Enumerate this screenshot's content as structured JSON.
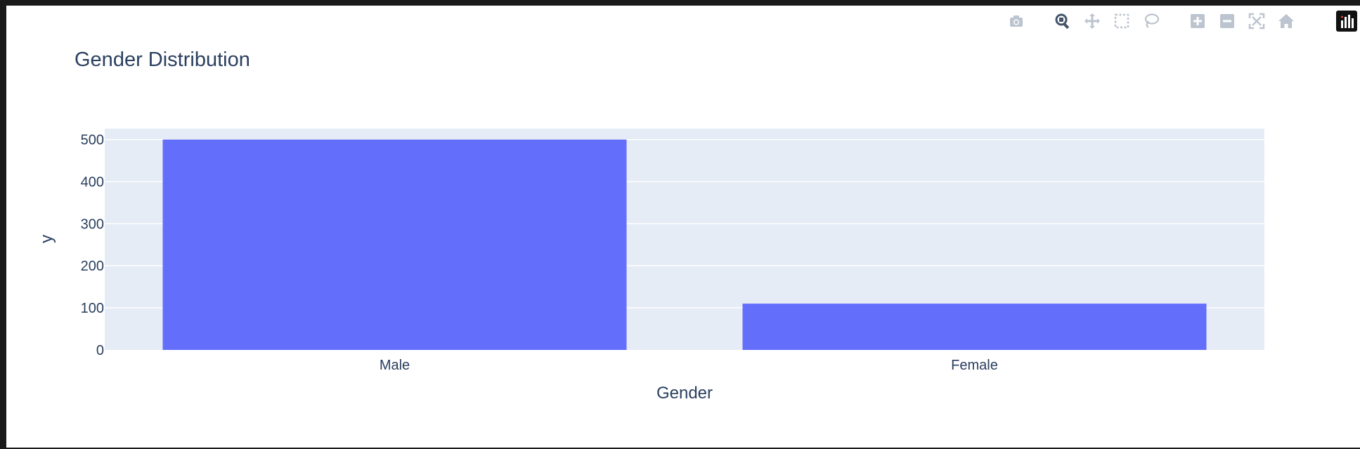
{
  "modebar": {
    "buttons": [
      {
        "name": "camera-icon",
        "group": 0
      },
      {
        "name": "zoom-icon",
        "group": 1,
        "active": true
      },
      {
        "name": "pan-icon",
        "group": 1
      },
      {
        "name": "box-select-icon",
        "group": 1
      },
      {
        "name": "lasso-select-icon",
        "group": 1
      },
      {
        "name": "zoom-in-icon",
        "group": 2
      },
      {
        "name": "zoom-out-icon",
        "group": 2
      },
      {
        "name": "autoscale-icon",
        "group": 2
      },
      {
        "name": "reset-axes-icon",
        "group": 2
      },
      {
        "name": "plotly-logo-icon",
        "group": 3
      }
    ],
    "icon_color": "#bcc4cf",
    "active_color": "#44546a"
  },
  "chart_data": {
    "type": "bar",
    "title": "Gender Distribution",
    "xlabel": "Gender",
    "ylabel": "y",
    "categories": [
      "Male",
      "Female"
    ],
    "values": [
      500,
      110
    ],
    "ylim": [
      0,
      526
    ],
    "yticks": [
      0,
      100,
      200,
      300,
      400,
      500
    ],
    "grid": true,
    "colors": {
      "bar": "#636efa",
      "plot_bg": "#e5ecf6",
      "grid": "#ffffff",
      "text": "#2a3f5f"
    }
  }
}
